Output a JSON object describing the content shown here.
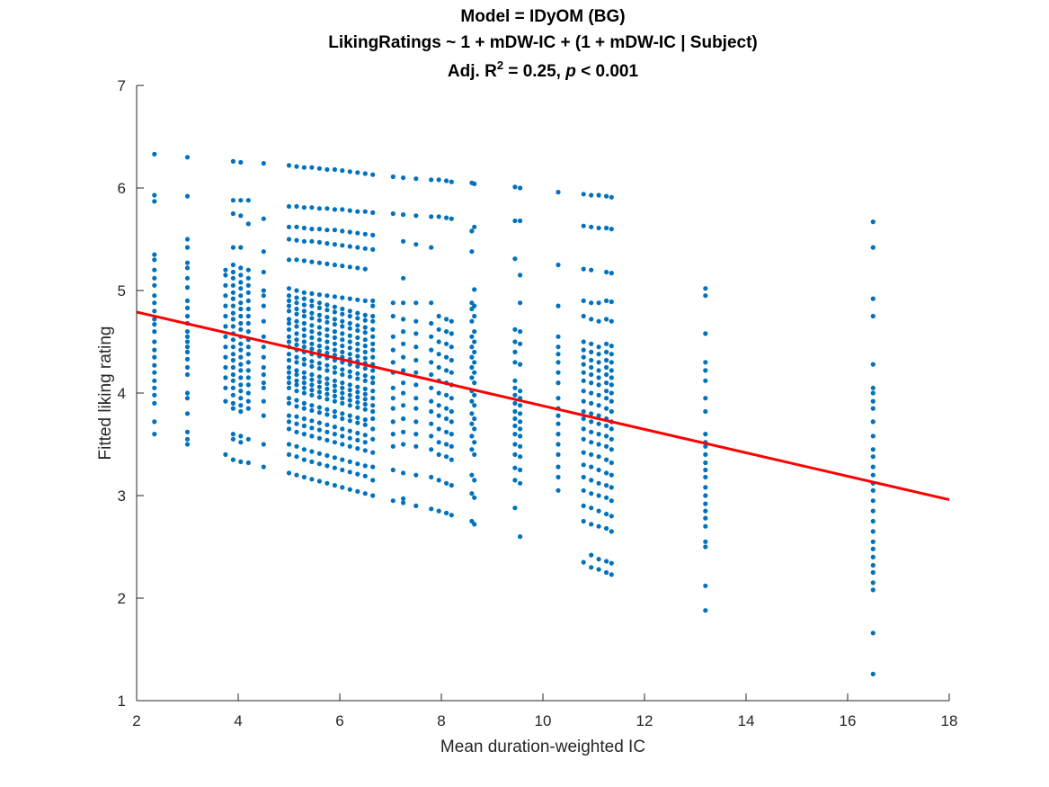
{
  "chart_data": {
    "type": "scatter",
    "title": {
      "line1": "Model = IDyOM (BG)",
      "line2": "LikingRatings ~ 1 + mDW-IC + (1 + mDW-IC | Subject)",
      "line3": {
        "prefix": "Adj. R",
        "superscript": "2",
        "middle": " = 0.25, ",
        "italic": "p",
        "suffix": " < 0.001"
      }
    },
    "xlabel": "Mean duration-weighted IC",
    "ylabel": "Fitted liking rating",
    "xlim": [
      2,
      18
    ],
    "ylim": [
      1,
      7
    ],
    "xticks": [
      2,
      4,
      6,
      8,
      10,
      12,
      14,
      16,
      18
    ],
    "yticks": [
      1,
      2,
      3,
      4,
      5,
      6,
      7
    ],
    "grid": false,
    "colors": {
      "points": "#0072BD",
      "fit_line": "#FF0000",
      "axes": "#262626"
    },
    "fit_line": {
      "x": [
        2,
        18
      ],
      "y": [
        4.79,
        2.96
      ]
    },
    "columns": [
      {
        "x": 2.35,
        "y": [
          6.33,
          5.93,
          5.87,
          5.35,
          5.3,
          5.2,
          5.12,
          5.05,
          4.95,
          4.88,
          4.8,
          4.72,
          4.67,
          4.6,
          4.5,
          4.42,
          4.35,
          4.27,
          4.2,
          4.12,
          4.05,
          3.98,
          3.9,
          3.72,
          3.6
        ]
      },
      {
        "x": 3.0,
        "y": [
          6.3,
          5.92,
          5.5,
          5.42,
          5.27,
          5.22,
          5.12,
          5.03,
          4.9,
          4.83,
          4.75,
          4.68,
          4.6,
          4.55,
          4.5,
          4.45,
          4.4,
          4.33,
          4.25,
          4.18,
          4.0,
          3.95,
          3.8,
          3.62,
          3.55,
          3.5
        ]
      },
      {
        "x": 3.75,
        "y": [
          5.2,
          5.15,
          5.05,
          4.95,
          4.85,
          4.75,
          4.65,
          4.55,
          4.45,
          4.35,
          4.25,
          4.15,
          4.05,
          3.92,
          3.4
        ]
      },
      {
        "x": 3.9,
        "y": [
          6.26,
          5.88,
          5.75,
          5.42,
          5.25,
          5.18,
          5.12,
          5.05,
          4.98,
          4.92,
          4.85,
          4.78,
          4.72,
          4.65,
          4.58,
          4.52,
          4.45,
          4.38,
          4.32,
          4.25,
          4.18,
          4.12,
          4.05,
          3.98,
          3.9,
          3.85,
          3.6,
          3.55,
          3.35
        ]
      },
      {
        "x": 4.05,
        "y": [
          6.25,
          5.88,
          5.73,
          5.42,
          5.22,
          5.15,
          5.08,
          5.02,
          4.95,
          4.88,
          4.82,
          4.75,
          4.68,
          4.62,
          4.55,
          4.48,
          4.42,
          4.35,
          4.28,
          4.22,
          4.15,
          4.08,
          4.02,
          3.95,
          3.88,
          3.82,
          3.58,
          3.52,
          3.33
        ]
      },
      {
        "x": 4.2,
        "y": [
          5.88,
          5.65,
          5.2,
          5.12,
          5.05,
          4.98,
          4.9,
          4.82,
          4.75,
          4.68,
          4.6,
          4.52,
          4.45,
          4.38,
          4.3,
          4.22,
          4.15,
          4.08,
          4.0,
          3.92,
          3.85,
          3.55,
          3.32
        ]
      },
      {
        "x": 4.5,
        "y": [
          6.24,
          5.7,
          5.38,
          5.18,
          5.0,
          4.95,
          4.85,
          4.7,
          4.55,
          4.45,
          4.35,
          4.25,
          4.18,
          4.1,
          4.05,
          3.92,
          3.78,
          3.5,
          3.28
        ]
      },
      {
        "x": 5.0,
        "y": [
          6.22,
          5.82,
          5.62,
          5.5,
          5.3,
          5.02,
          4.95,
          4.9,
          4.85,
          4.8,
          4.72,
          4.68,
          4.62,
          4.55,
          4.5,
          4.45,
          4.38,
          4.32,
          4.25,
          4.2,
          4.15,
          4.1,
          4.05,
          3.95,
          3.9,
          3.78,
          3.72,
          3.65,
          3.5,
          3.4,
          3.22
        ]
      },
      {
        "x": 5.15,
        "y": [
          6.21,
          5.82,
          5.62,
          5.49,
          5.3,
          5.0,
          4.93,
          4.88,
          4.82,
          4.77,
          4.7,
          4.65,
          4.58,
          4.52,
          4.47,
          4.42,
          4.35,
          4.3,
          4.22,
          4.18,
          4.12,
          4.08,
          4.02,
          3.93,
          3.87,
          3.77,
          3.7,
          3.62,
          3.48,
          3.38,
          3.2
        ]
      },
      {
        "x": 5.3,
        "y": [
          6.2,
          5.81,
          5.61,
          5.48,
          5.29,
          4.98,
          4.92,
          4.86,
          4.8,
          4.75,
          4.68,
          4.62,
          4.56,
          4.5,
          4.45,
          4.4,
          4.33,
          4.28,
          4.2,
          4.15,
          4.1,
          4.05,
          4.0,
          3.9,
          3.85,
          3.75,
          3.68,
          3.6,
          3.45,
          3.35,
          3.18
        ]
      },
      {
        "x": 5.45,
        "y": [
          6.2,
          5.81,
          5.6,
          5.48,
          5.28,
          4.97,
          4.9,
          4.85,
          4.78,
          4.73,
          4.66,
          4.6,
          4.54,
          4.48,
          4.43,
          4.38,
          4.31,
          4.26,
          4.18,
          4.13,
          4.08,
          4.03,
          3.98,
          3.88,
          3.83,
          3.73,
          3.66,
          3.58,
          3.43,
          3.33,
          3.16
        ]
      },
      {
        "x": 5.6,
        "y": [
          6.19,
          5.8,
          5.6,
          5.47,
          5.27,
          4.96,
          4.88,
          4.83,
          4.76,
          4.71,
          4.64,
          4.58,
          4.52,
          4.46,
          4.41,
          4.36,
          4.29,
          4.24,
          4.16,
          4.11,
          4.06,
          4.01,
          3.96,
          3.86,
          3.81,
          3.71,
          3.64,
          3.56,
          3.41,
          3.31,
          3.14
        ]
      },
      {
        "x": 5.75,
        "y": [
          6.18,
          5.8,
          5.59,
          5.46,
          5.26,
          4.95,
          4.86,
          4.81,
          4.74,
          4.69,
          4.62,
          4.56,
          4.5,
          4.44,
          4.39,
          4.34,
          4.27,
          4.22,
          4.14,
          4.09,
          4.04,
          3.99,
          3.94,
          3.84,
          3.79,
          3.69,
          3.62,
          3.54,
          3.39,
          3.29,
          3.12
        ]
      },
      {
        "x": 5.9,
        "y": [
          6.18,
          5.79,
          5.59,
          5.45,
          5.25,
          4.94,
          4.84,
          4.79,
          4.72,
          4.67,
          4.6,
          4.54,
          4.48,
          4.42,
          4.37,
          4.32,
          4.25,
          4.2,
          4.12,
          4.07,
          4.02,
          3.97,
          3.92,
          3.82,
          3.77,
          3.67,
          3.6,
          3.52,
          3.37,
          3.27,
          3.1
        ]
      },
      {
        "x": 6.05,
        "y": [
          6.17,
          5.79,
          5.58,
          5.44,
          5.24,
          4.93,
          4.82,
          4.77,
          4.7,
          4.65,
          4.58,
          4.52,
          4.46,
          4.4,
          4.35,
          4.3,
          4.23,
          4.18,
          4.1,
          4.05,
          4.0,
          3.95,
          3.9,
          3.8,
          3.75,
          3.65,
          3.58,
          3.5,
          3.35,
          3.25,
          3.08
        ]
      },
      {
        "x": 6.2,
        "y": [
          6.16,
          5.78,
          5.57,
          5.43,
          5.23,
          4.92,
          4.8,
          4.75,
          4.68,
          4.63,
          4.56,
          4.5,
          4.44,
          4.38,
          4.33,
          4.28,
          4.21,
          4.16,
          4.08,
          4.03,
          3.98,
          3.93,
          3.88,
          3.78,
          3.73,
          3.63,
          3.56,
          3.48,
          3.33,
          3.23,
          3.06
        ]
      },
      {
        "x": 6.35,
        "y": [
          6.15,
          5.77,
          5.56,
          5.42,
          5.22,
          4.91,
          4.78,
          4.73,
          4.66,
          4.61,
          4.54,
          4.48,
          4.42,
          4.36,
          4.31,
          4.26,
          4.19,
          4.14,
          4.06,
          4.01,
          3.96,
          3.91,
          3.86,
          3.76,
          3.71,
          3.61,
          3.54,
          3.46,
          3.31,
          3.21,
          3.04
        ]
      },
      {
        "x": 6.5,
        "y": [
          6.14,
          5.77,
          5.55,
          5.41,
          5.21,
          4.9,
          4.76,
          4.71,
          4.64,
          4.59,
          4.52,
          4.46,
          4.4,
          4.34,
          4.29,
          4.24,
          4.17,
          4.12,
          4.04,
          3.99,
          3.94,
          3.89,
          3.84,
          3.74,
          3.69,
          3.59,
          3.52,
          3.44,
          3.29,
          3.19,
          3.02
        ]
      },
      {
        "x": 6.65,
        "y": [
          6.13,
          5.76,
          5.54,
          5.4,
          4.9,
          4.85,
          4.75,
          4.7,
          4.62,
          4.55,
          4.48,
          4.42,
          4.35,
          4.28,
          4.22,
          4.15,
          4.1,
          4.02,
          3.95,
          3.88,
          3.82,
          3.75,
          3.65,
          3.55,
          3.42,
          3.28,
          3.15,
          3.0
        ]
      },
      {
        "x": 7.05,
        "y": [
          6.11,
          5.75,
          4.88,
          4.75,
          4.55,
          4.42,
          4.3,
          4.2,
          4.05,
          3.95,
          3.85,
          3.72,
          3.6,
          3.48,
          3.25,
          2.95
        ]
      },
      {
        "x": 7.25,
        "y": [
          6.1,
          5.74,
          5.48,
          5.12,
          4.88,
          4.72,
          4.6,
          4.48,
          4.35,
          4.22,
          4.1,
          4.0,
          3.88,
          3.75,
          3.62,
          3.5,
          3.22,
          2.97,
          2.93
        ]
      },
      {
        "x": 7.5,
        "y": [
          6.09,
          5.73,
          5.45,
          4.88,
          4.7,
          4.58,
          4.45,
          4.32,
          4.2,
          4.08,
          3.95,
          3.85,
          3.72,
          3.6,
          3.48,
          3.2,
          2.9
        ]
      },
      {
        "x": 7.8,
        "y": [
          6.08,
          5.72,
          5.42,
          4.88,
          4.68,
          4.55,
          4.42,
          4.3,
          4.18,
          4.05,
          3.92,
          3.82,
          3.7,
          3.58,
          3.45,
          3.18,
          2.87
        ]
      },
      {
        "x": 7.95,
        "y": [
          6.08,
          5.72,
          4.75,
          4.62,
          4.5,
          4.38,
          4.25,
          4.12,
          4.0,
          3.88,
          3.78,
          3.65,
          3.52,
          3.4,
          3.15,
          2.85
        ]
      },
      {
        "x": 8.1,
        "y": [
          6.07,
          5.71,
          4.72,
          4.6,
          4.48,
          4.35,
          4.22,
          4.1,
          3.98,
          3.85,
          3.75,
          3.62,
          3.5,
          3.38,
          3.12,
          2.83
        ]
      },
      {
        "x": 8.2,
        "y": [
          6.06,
          5.7,
          4.7,
          4.58,
          4.45,
          4.32,
          4.2,
          4.08,
          3.95,
          3.82,
          3.72,
          3.6,
          3.48,
          3.35,
          3.1,
          2.81
        ]
      },
      {
        "x": 8.6,
        "y": [
          6.05,
          5.58,
          5.38,
          4.88,
          4.82,
          4.7,
          4.55,
          4.45,
          4.35,
          4.25,
          4.15,
          4.02,
          3.92,
          3.8,
          3.7,
          3.58,
          3.45,
          3.2,
          3.02,
          2.75
        ]
      },
      {
        "x": 8.65,
        "y": [
          6.04,
          5.62,
          5.01,
          4.85,
          4.75,
          4.6,
          4.5,
          4.4,
          4.3,
          4.2,
          4.1,
          3.98,
          3.88,
          3.75,
          3.65,
          3.52,
          3.4,
          3.15,
          2.98,
          2.72
        ]
      },
      {
        "x": 9.45,
        "y": [
          6.01,
          5.68,
          5.31,
          4.62,
          4.5,
          4.4,
          4.3,
          4.12,
          4.05,
          3.98,
          3.9,
          3.82,
          3.75,
          3.68,
          3.6,
          3.5,
          3.4,
          3.27,
          3.15,
          2.88
        ]
      },
      {
        "x": 9.55,
        "y": [
          6.0,
          5.68,
          5.15,
          4.88,
          4.6,
          4.48,
          4.28,
          4.02,
          3.95,
          3.88,
          3.8,
          3.72,
          3.65,
          3.58,
          3.48,
          3.38,
          3.25,
          3.12,
          2.6
        ]
      },
      {
        "x": 10.3,
        "y": [
          5.96,
          5.25,
          4.85,
          4.55,
          4.45,
          4.38,
          4.3,
          4.2,
          4.1,
          3.95,
          3.85,
          3.78,
          3.7,
          3.6,
          3.5,
          3.4,
          3.28,
          3.18,
          3.05
        ]
      },
      {
        "x": 10.8,
        "y": [
          5.94,
          5.63,
          5.21,
          4.9,
          4.75,
          4.5,
          4.42,
          4.35,
          4.28,
          4.2,
          4.12,
          4.02,
          3.92,
          3.82,
          3.75,
          3.65,
          3.55,
          3.42,
          3.3,
          3.18,
          3.05,
          2.9,
          2.75,
          2.35
        ]
      },
      {
        "x": 10.95,
        "y": [
          5.93,
          5.62,
          5.2,
          4.88,
          4.72,
          4.48,
          4.4,
          4.32,
          4.25,
          4.18,
          4.1,
          4.0,
          3.9,
          3.8,
          3.72,
          3.62,
          3.52,
          3.4,
          3.28,
          3.15,
          3.02,
          2.88,
          2.72,
          2.42,
          2.3
        ]
      },
      {
        "x": 11.1,
        "y": [
          5.93,
          5.61,
          4.88,
          4.7,
          4.45,
          4.38,
          4.3,
          4.22,
          4.15,
          4.08,
          3.98,
          3.88,
          3.78,
          3.7,
          3.6,
          3.5,
          3.38,
          3.25,
          3.12,
          3.0,
          2.85,
          2.7,
          2.38,
          2.28
        ]
      },
      {
        "x": 11.25,
        "y": [
          5.92,
          5.61,
          5.18,
          4.9,
          4.72,
          4.48,
          4.4,
          4.32,
          4.25,
          4.18,
          4.1,
          4.02,
          3.95,
          3.85,
          3.75,
          3.68,
          3.58,
          3.48,
          3.35,
          3.22,
          3.1,
          2.98,
          2.82,
          2.68,
          2.36,
          2.25
        ]
      },
      {
        "x": 11.35,
        "y": [
          5.91,
          5.6,
          5.17,
          4.89,
          4.7,
          4.46,
          4.38,
          4.3,
          4.22,
          4.15,
          4.08,
          4.0,
          3.92,
          3.82,
          3.72,
          3.65,
          3.55,
          3.45,
          3.32,
          3.2,
          3.08,
          2.95,
          2.8,
          2.65,
          2.34,
          2.23
        ]
      },
      {
        "x": 13.2,
        "y": [
          5.02,
          4.95,
          4.58,
          4.3,
          4.22,
          4.12,
          3.95,
          3.82,
          3.6,
          3.52,
          3.48,
          3.4,
          3.32,
          3.25,
          3.18,
          3.08,
          3.0,
          2.92,
          2.85,
          2.78,
          2.7,
          2.55,
          2.5,
          2.12,
          1.88
        ]
      },
      {
        "x": 16.5,
        "y": [
          5.67,
          5.42,
          4.92,
          4.75,
          4.28,
          4.05,
          4.0,
          3.92,
          3.85,
          3.72,
          3.58,
          3.45,
          3.38,
          3.28,
          3.2,
          3.12,
          3.05,
          2.95,
          2.85,
          2.75,
          2.65,
          2.55,
          2.48,
          2.4,
          2.32,
          2.25,
          2.15,
          2.08,
          1.66,
          1.26
        ]
      }
    ]
  }
}
